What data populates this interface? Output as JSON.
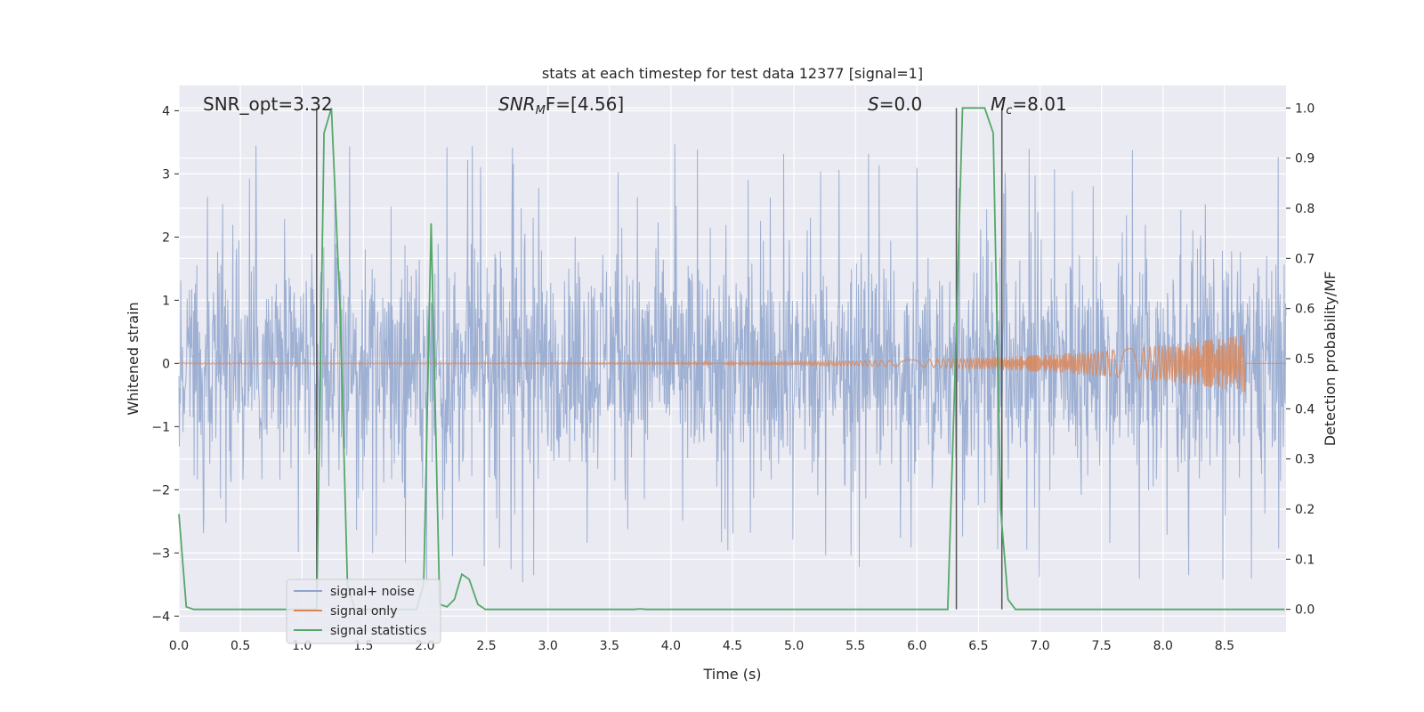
{
  "chart_data": {
    "type": "line",
    "title": "stats at each timestep for test data 12377 [signal=1]",
    "xlabel": "Time (s)",
    "ylabel": "Whitened strain",
    "y2label": "Detection probability/MF",
    "xlim": [
      0,
      9.0
    ],
    "ylim": [
      -4.25,
      4.4
    ],
    "y2lim": [
      -0.045,
      1.045
    ],
    "x_ticks": [
      0.0,
      0.5,
      1.0,
      1.5,
      2.0,
      2.5,
      3.0,
      3.5,
      4.0,
      4.5,
      5.0,
      5.5,
      6.0,
      6.5,
      7.0,
      7.5,
      8.0,
      8.5
    ],
    "x_tick_labels": [
      "0.0",
      "0.5",
      "1.0",
      "1.5",
      "2.0",
      "2.5",
      "3.0",
      "3.5",
      "4.0",
      "4.5",
      "5.0",
      "5.5",
      "6.0",
      "6.5",
      "7.0",
      "7.5",
      "8.0",
      "8.5"
    ],
    "y_ticks": [
      -4,
      -3,
      -2,
      -1,
      0,
      1,
      2,
      3,
      4
    ],
    "y_tick_labels": [
      "−4",
      "−3",
      "−2",
      "−1",
      "0",
      "1",
      "2",
      "3",
      "4"
    ],
    "y2_ticks": [
      0.0,
      0.1,
      0.2,
      0.3,
      0.4,
      0.5,
      0.6,
      0.7,
      0.8,
      0.9,
      1.0
    ],
    "y2_tick_labels": [
      "0.0",
      "0.1",
      "0.2",
      "0.3",
      "0.4",
      "0.5",
      "0.6",
      "0.7",
      "0.8",
      "0.9",
      "1.0"
    ],
    "grid": true,
    "legend_position": "lower-left",
    "annotations": {
      "snr_opt": "SNR_opt=3.32",
      "snr_mf_base": "SNR",
      "snr_mf_sub": "M",
      "snr_mf_rest": "F=[4.56]",
      "s_italic": "S",
      "s_rest": "=0.0",
      "mc_base": "M",
      "mc_sub": "c",
      "mc_rest": "=8.01"
    },
    "vertical_lines_x": [
      1.12,
      6.32,
      6.69
    ],
    "series": [
      {
        "name": "signal+ noise",
        "color": "#8fa4cc",
        "axis": "left",
        "description_values": {
          "dense_band": [
            -1.4,
            1.4
          ],
          "peak_extremes": [
            -3.65,
            3.5
          ]
        }
      },
      {
        "name": "signal only",
        "color": "#dd8452",
        "axis": "left",
        "chirp_amplitude_end": 0.45,
        "chirp_end_x": 8.67
      },
      {
        "name": "signal statistics",
        "color": "#55a868",
        "axis": "right",
        "x": [
          0.0,
          0.06,
          0.12,
          1.12,
          1.18,
          1.24,
          1.31,
          1.37,
          1.43,
          1.93,
          1.99,
          2.05,
          2.12,
          2.18,
          2.24,
          2.3,
          2.36,
          2.43,
          2.49,
          2.55,
          3.7,
          3.75,
          3.8,
          6.25,
          6.31,
          6.37,
          6.43,
          6.49,
          6.55,
          6.62,
          6.68,
          6.74,
          6.8,
          8.99
        ],
        "values": [
          0.19,
          0.005,
          0.0,
          0.0,
          0.95,
          1.0,
          0.6,
          0.05,
          0.0,
          0.0,
          0.05,
          0.77,
          0.01,
          0.005,
          0.02,
          0.07,
          0.06,
          0.01,
          0.0,
          0.0,
          0.0,
          0.001,
          0.0,
          0.0,
          0.48,
          1.0,
          1.0,
          1.0,
          1.0,
          0.95,
          0.2,
          0.02,
          0.0,
          0.0
        ]
      }
    ]
  },
  "legend": {
    "items": [
      {
        "label": "signal+ noise",
        "color": "#8fa4cc"
      },
      {
        "label": "signal only",
        "color": "#dd8452"
      },
      {
        "label": "signal statistics",
        "color": "#55a868"
      }
    ]
  },
  "colors": {
    "plot_bg": "#eaeaf2",
    "grid": "#ffffff",
    "vline": "#555555"
  }
}
